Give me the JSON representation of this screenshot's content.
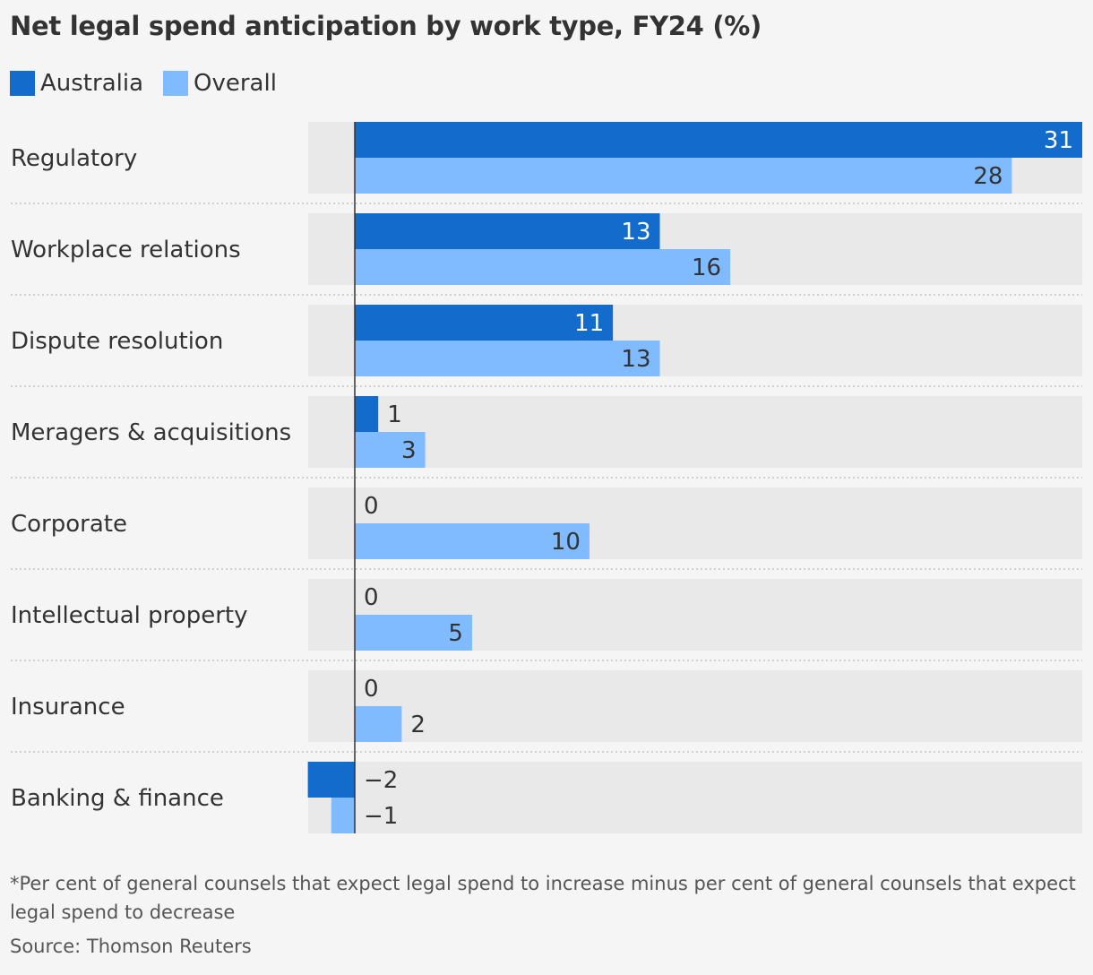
{
  "title": "Net legal spend anticipation by work type, FY24 (%)",
  "footnote": "*Per cent of general counsels that expect legal spend to increase minus per cent of general counsels that expect legal spend to decrease",
  "source": "Source: Thomson Reuters",
  "colors": {
    "australia": "#136bcb",
    "overall": "#80baff",
    "row_background": "#e9e9e9",
    "text": "#333333"
  },
  "chart_data": {
    "type": "bar",
    "orientation": "horizontal",
    "title": "Net legal spend anticipation by work type, FY24 (%)",
    "categories": [
      "Regulatory",
      "Workplace relations",
      "Dispute resolution",
      "Meragers & acquisitions",
      "Corporate",
      "Intellectual property",
      "Insurance",
      "Banking & finance"
    ],
    "series": [
      {
        "name": "Australia",
        "values": [
          31,
          13,
          11,
          1,
          0,
          0,
          0,
          -2
        ]
      },
      {
        "name": "Overall",
        "values": [
          28,
          16,
          13,
          3,
          10,
          5,
          2,
          -1
        ]
      }
    ],
    "value_labels": {
      "Australia": [
        "31",
        "13",
        "11",
        "1",
        "0",
        "0",
        "0",
        "−2"
      ],
      "Overall": [
        "28",
        "16",
        "13",
        "3",
        "10",
        "5",
        "2",
        "−1"
      ]
    },
    "xlim": [
      -2,
      31
    ],
    "legend": "top-left",
    "grid": false
  }
}
